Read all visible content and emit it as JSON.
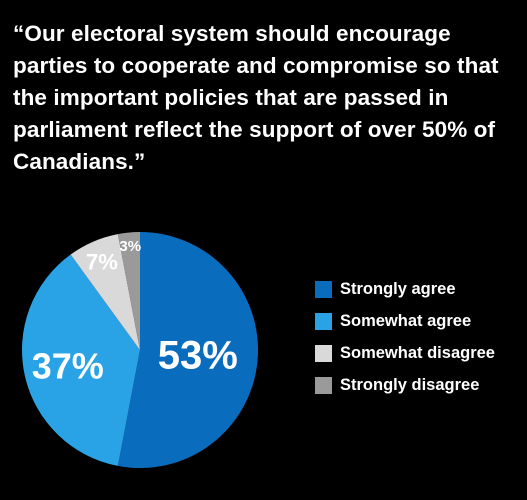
{
  "header": {
    "quote": "“Our electoral system should encourage parties to cooperate and compromise so that the important policies that are passed in parliament reflect the support of over 50% of Canadians.”"
  },
  "chart_data": {
    "type": "pie",
    "categories": [
      "Strongly agree",
      "Somewhat agree",
      "Somewhat disagree",
      "Strongly disagree"
    ],
    "values": [
      53,
      37,
      7,
      3
    ],
    "value_labels": [
      "53%",
      "37%",
      "7%",
      "3%"
    ],
    "colors": [
      "#0a6cbd",
      "#29a3e6",
      "#d9d9d9",
      "#9a9a9a"
    ],
    "legend_position": "right"
  }
}
